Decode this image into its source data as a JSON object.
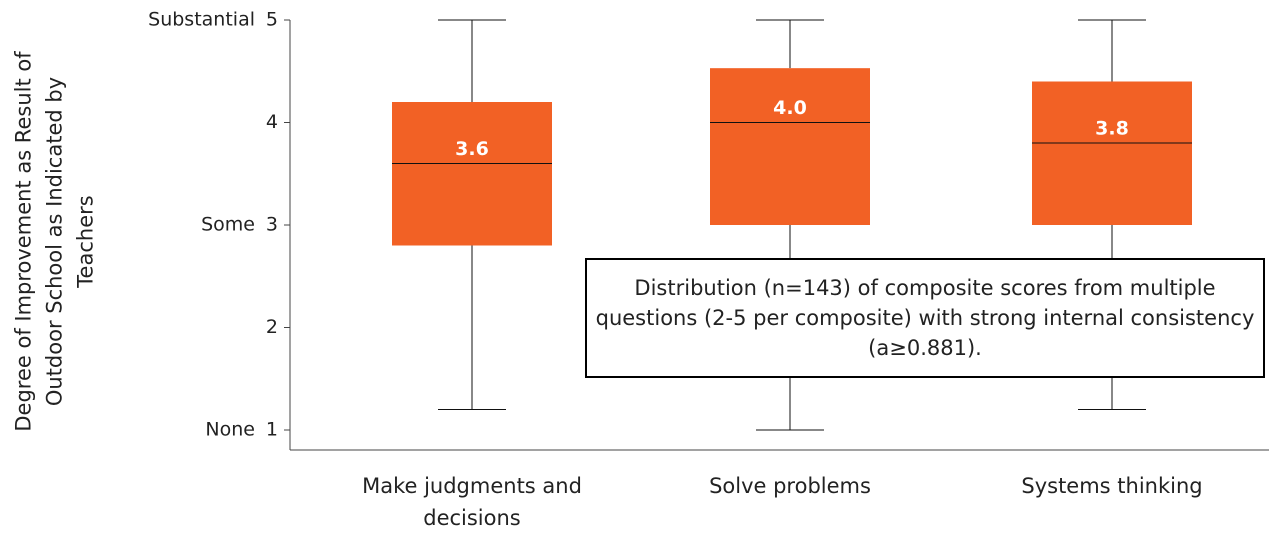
{
  "chart_data": {
    "type": "box",
    "y_label": "Degree of Improvement as Result of Outdoor School as Indicated by Teachers",
    "categories": [
      "Make judgments and decisions",
      "Solve problems",
      "Systems thinking"
    ],
    "low": [
      1.2,
      1,
      1.2
    ],
    "q1": [
      2.8,
      3,
      3
    ],
    "median": [
      3.6,
      4.0,
      3.8
    ],
    "median_labels": [
      "3.6",
      "4.0",
      "3.8"
    ],
    "q3": [
      4.2,
      4.53,
      4.4
    ],
    "high": [
      5,
      5,
      5
    ],
    "color": "#f26125",
    "ylim": [
      1,
      5
    ],
    "yticks": [
      1,
      2,
      3,
      4,
      5
    ],
    "y_level_labels": [
      {
        "value": 5,
        "label": "Substantial"
      },
      {
        "value": 3,
        "label": "Some"
      },
      {
        "value": 1,
        "label": "None"
      }
    ],
    "annotation": "Distribution (n=143) of composite scores from multiple questions (2-5 per composite) with strong internal consistency (a≥0.881)."
  }
}
